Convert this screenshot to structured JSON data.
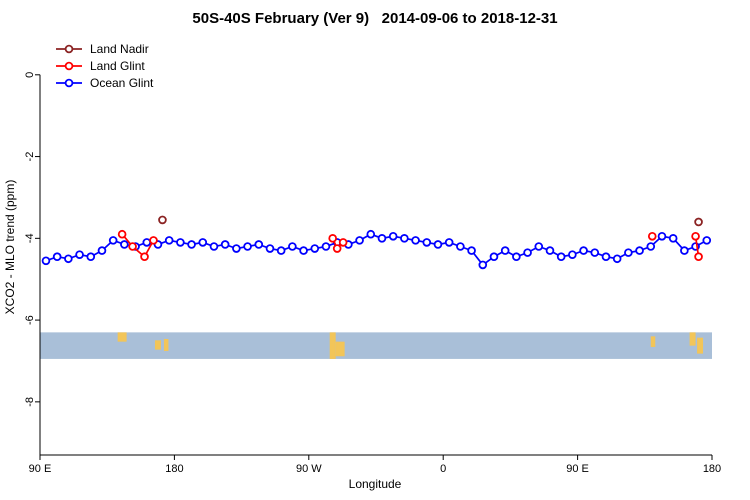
{
  "title": "50S-40S February (Ver 9)   2014-09-06 to 2018-12-31",
  "axes": {
    "x_label": "Longitude",
    "y_label": "XCO2 - MLO trend (ppm)"
  },
  "legend": [
    {
      "label": "Land Nadir",
      "color": "#8b2323"
    },
    {
      "label": "Land Glint",
      "color": "#ff0000"
    },
    {
      "label": "Ocean Glint",
      "color": "#0000ff"
    }
  ],
  "chart_data": {
    "type": "line",
    "title": "50S-40S February (Ver 9)   2014-09-06 to 2018-12-31",
    "xlabel": "Longitude",
    "ylabel": "XCO2 - MLO trend (ppm)",
    "xlim": [
      0,
      450
    ],
    "ylim": [
      -9.3,
      0.9
    ],
    "grid": false,
    "legend_position": "top-left",
    "x_ticks": [
      {
        "pos": 0,
        "label": "90 E"
      },
      {
        "pos": 90,
        "label": "180"
      },
      {
        "pos": 180,
        "label": "90 W"
      },
      {
        "pos": 270,
        "label": "0"
      },
      {
        "pos": 360,
        "label": "90 E"
      },
      {
        "pos": 450,
        "label": "180"
      }
    ],
    "y_ticks": [
      {
        "pos": 0,
        "label": "0"
      },
      {
        "pos": -2,
        "label": "-2"
      },
      {
        "pos": -4,
        "label": "-4"
      },
      {
        "pos": -6,
        "label": "-6"
      },
      {
        "pos": -8,
        "label": "-8"
      }
    ],
    "series": [
      {
        "name": "Ocean Glint",
        "color": "#0000ff",
        "marker": "open-circle",
        "segments": [
          [
            [
              4,
              -4.55
            ],
            [
              11.5,
              -4.45
            ],
            [
              19,
              -4.5
            ],
            [
              26.5,
              -4.4
            ],
            [
              34,
              -4.45
            ],
            [
              41.5,
              -4.3
            ],
            [
              49,
              -4.05
            ],
            [
              56.5,
              -4.15
            ],
            [
              64,
              -4.2
            ],
            [
              71.5,
              -4.1
            ],
            [
              79,
              -4.15
            ],
            [
              86.5,
              -4.05
            ],
            [
              94,
              -4.1
            ],
            [
              101.5,
              -4.15
            ],
            [
              109,
              -4.1
            ],
            [
              116.5,
              -4.2
            ],
            [
              124,
              -4.15
            ],
            [
              131.5,
              -4.25
            ],
            [
              139,
              -4.2
            ],
            [
              146.5,
              -4.15
            ],
            [
              154,
              -4.25
            ],
            [
              161.5,
              -4.3
            ],
            [
              169,
              -4.2
            ],
            [
              176.5,
              -4.3
            ],
            [
              184,
              -4.25
            ],
            [
              191.5,
              -4.2
            ],
            [
              199,
              -4.1
            ],
            [
              206.5,
              -4.15
            ],
            [
              214,
              -4.05
            ],
            [
              221.5,
              -3.9
            ],
            [
              229,
              -4.0
            ],
            [
              236.5,
              -3.95
            ],
            [
              244,
              -4.0
            ],
            [
              251.5,
              -4.05
            ],
            [
              259,
              -4.1
            ],
            [
              266.5,
              -4.15
            ],
            [
              274,
              -4.1
            ],
            [
              281.5,
              -4.2
            ],
            [
              289,
              -4.3
            ],
            [
              296.5,
              -4.65
            ],
            [
              304,
              -4.45
            ],
            [
              311.5,
              -4.3
            ],
            [
              319,
              -4.45
            ],
            [
              326.5,
              -4.35
            ],
            [
              334,
              -4.2
            ],
            [
              341.5,
              -4.3
            ],
            [
              349,
              -4.45
            ],
            [
              356.5,
              -4.4
            ],
            [
              364,
              -4.3
            ],
            [
              371.5,
              -4.35
            ],
            [
              379,
              -4.45
            ],
            [
              386.5,
              -4.5
            ],
            [
              394,
              -4.35
            ],
            [
              401.5,
              -4.3
            ],
            [
              409,
              -4.2
            ],
            [
              416.5,
              -3.95
            ],
            [
              424,
              -4.0
            ],
            [
              431.5,
              -4.3
            ],
            [
              439,
              -4.2
            ],
            [
              446.5,
              -4.05
            ]
          ]
        ]
      },
      {
        "name": "Land Glint",
        "color": "#ff0000",
        "marker": "open-circle",
        "segments": [
          [
            [
              55,
              -3.9
            ],
            [
              62,
              -4.2
            ],
            [
              70,
              -4.45
            ],
            [
              76,
              -4.05
            ]
          ],
          [
            [
              196,
              -4.0
            ],
            [
              199,
              -4.25
            ],
            [
              203,
              -4.1
            ]
          ],
          [
            [
              410,
              -3.95
            ]
          ],
          [
            [
              439,
              -3.95
            ],
            [
              441,
              -4.45
            ]
          ]
        ]
      },
      {
        "name": "Land Nadir",
        "color": "#8b2323",
        "marker": "open-circle",
        "segments": [
          [
            [
              82,
              -3.55
            ]
          ],
          [
            [
              441,
              -3.6
            ]
          ]
        ]
      }
    ],
    "band": {
      "description": "surface-type strip: blue = ocean, yellow = land",
      "color": "#a9bfd8",
      "patch_color": "#f2c559",
      "y_top": -6.3,
      "y_bottom": -6.95,
      "patches": [
        {
          "x0": 52,
          "x1": 58,
          "top": 0,
          "h": 0.35
        },
        {
          "x0": 77,
          "x1": 81,
          "top": 0.3,
          "h": 0.35
        },
        {
          "x0": 83,
          "x1": 86,
          "top": 0.25,
          "h": 0.45
        },
        {
          "x0": 194,
          "x1": 198,
          "top": 0,
          "h": 1
        },
        {
          "x0": 198,
          "x1": 204,
          "top": 0.35,
          "h": 0.55
        },
        {
          "x0": 409,
          "x1": 412,
          "top": 0.15,
          "h": 0.4
        },
        {
          "x0": 435,
          "x1": 439,
          "top": 0,
          "h": 0.5
        },
        {
          "x0": 440,
          "x1": 444,
          "top": 0.2,
          "h": 0.6
        }
      ]
    }
  }
}
